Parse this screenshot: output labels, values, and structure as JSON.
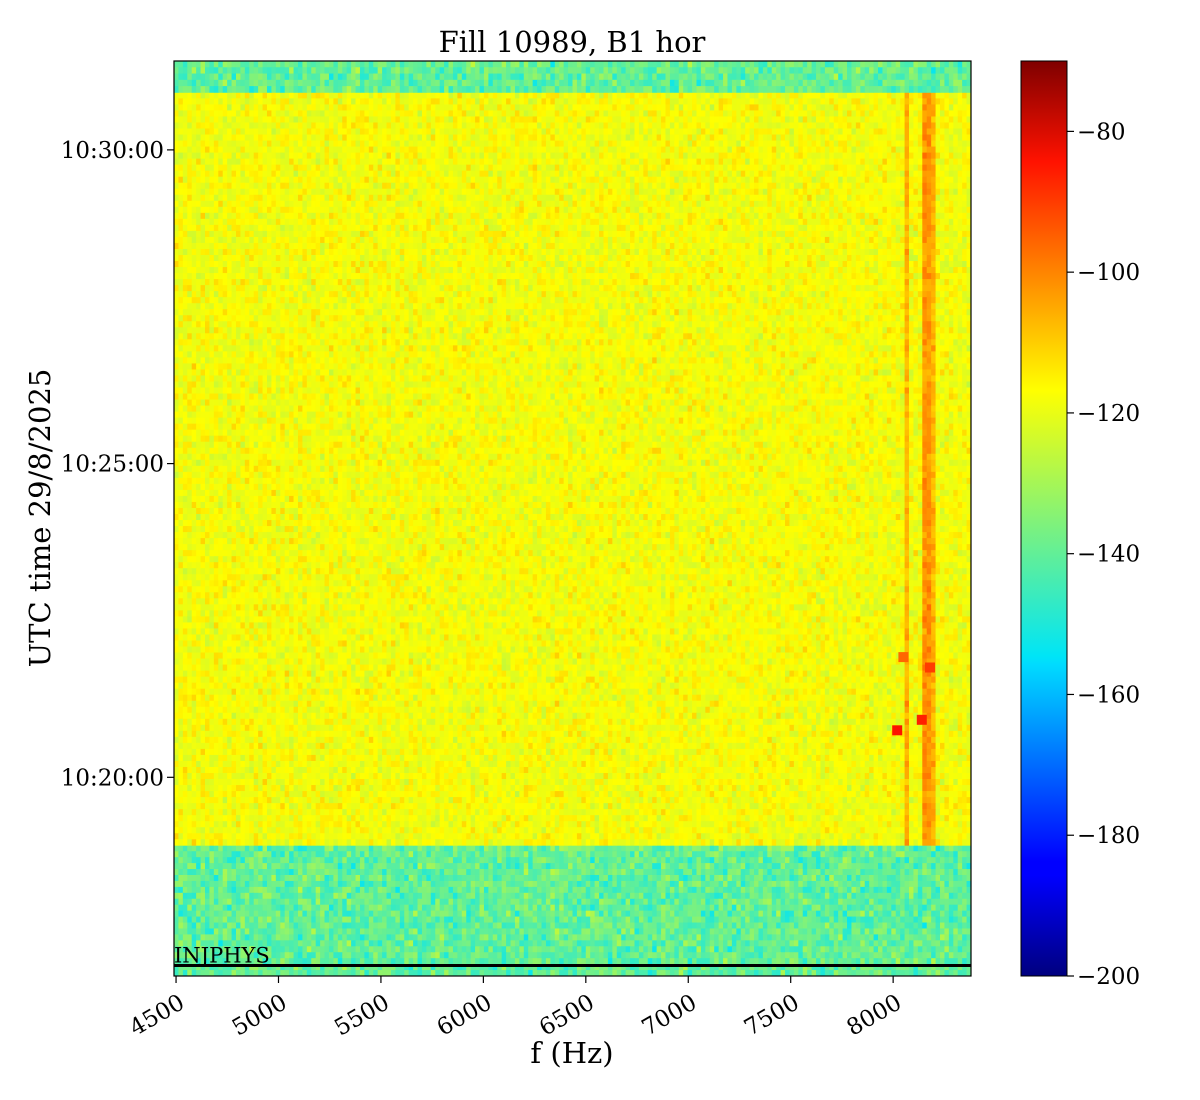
{
  "chart_data": {
    "type": "heatmap",
    "title": "Fill 10989, B1 hor",
    "xlabel": "f (Hz)",
    "ylabel": "UTC time 29/8/2025",
    "x_ticks": [
      4500,
      5000,
      5500,
      6000,
      6500,
      7000,
      7500,
      8000
    ],
    "x_tick_labels": [
      "4500",
      "5000",
      "5500",
      "6000",
      "6500",
      "7000",
      "7500",
      "8000"
    ],
    "xlim": [
      4490,
      8380
    ],
    "y_ticks": [
      "10:30:00",
      "10:25:00",
      "10:20:00"
    ],
    "y_tick_labels": [
      "10:30:00",
      "10:25:00",
      "10:20:00"
    ],
    "ylim": [
      "10:16:50",
      "10:31:25"
    ],
    "colorbar": {
      "colormap": "jet",
      "range": [
        -200,
        -70
      ],
      "ticks": [
        -80,
        -100,
        -120,
        -140,
        -160,
        -180,
        -200
      ],
      "tick_labels": [
        "−80",
        "−100",
        "−120",
        "−140",
        "−160",
        "−180",
        "−200"
      ]
    },
    "regions": [
      {
        "time_start": "10:16:50",
        "time_end": "10:18:55",
        "level": -140
      },
      {
        "time_start": "10:18:55",
        "time_end": "10:30:55",
        "level": -118
      },
      {
        "time_start": "10:30:55",
        "time_end": "10:31:25",
        "level": -140
      }
    ],
    "lines": [
      {
        "f": 8070,
        "level": -106
      },
      {
        "f": 8170,
        "level": -102
      },
      {
        "f": 8200,
        "level": -106
      }
    ],
    "spots": [
      {
        "f": 8020,
        "time": "10:20:45",
        "level": -84
      },
      {
        "f": 8140,
        "time": "10:20:55",
        "level": -86
      },
      {
        "f": 8050,
        "time": "10:21:55",
        "level": -96
      },
      {
        "f": 8180,
        "time": "10:21:45",
        "level": -90
      }
    ],
    "annotation": {
      "text": "INJPHYS",
      "time": "10:17:00"
    }
  }
}
